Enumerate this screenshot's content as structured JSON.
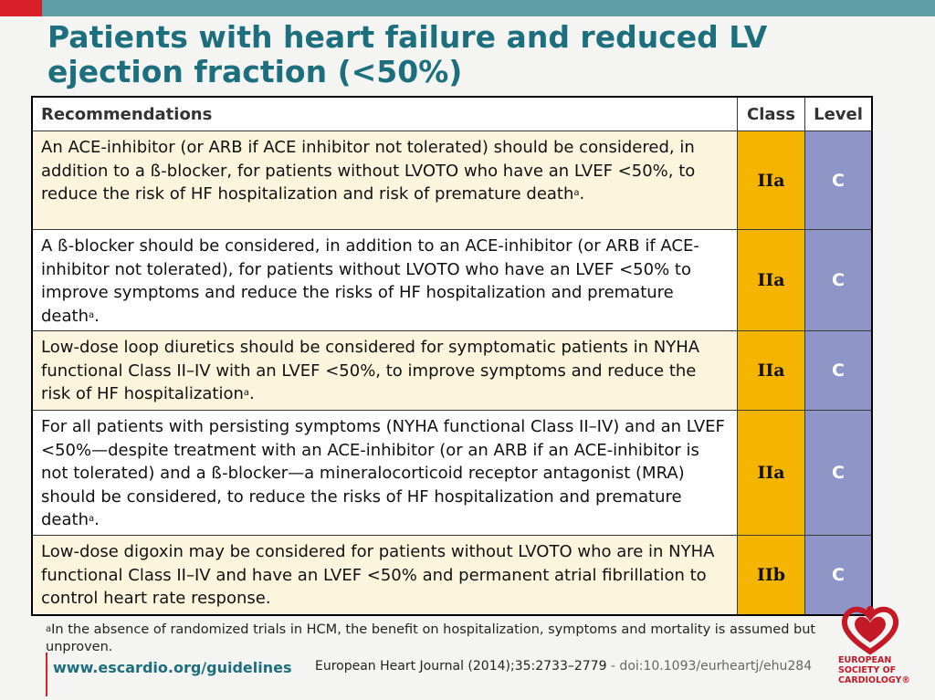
{
  "slide": {
    "title_line1": "Patients with heart failure and reduced LV",
    "title_line2": "ejection fraction (<50%)"
  },
  "table": {
    "headers": {
      "recommendations": "Recommendations",
      "class": "Class",
      "level": "Level"
    },
    "rows": [
      {
        "text": "An ACE-inhibitor (or ARB if ACE inhibitor not tolerated) should be considered, in addition to a ß-blocker, for patients without LVOTO who have an LVEF <50%, to reduce the risk of HF hospitalization and risk of premature death",
        "footnote_mark": "a",
        "tail": ".",
        "class": "IIa",
        "level": "C"
      },
      {
        "text": "A ß-blocker should be considered, in addition to an ACE-inhibitor (or ARB if ACE-inhibitor not tolerated), for patients without LVOTO who have an LVEF <50% to improve symptoms and reduce the risks of HF hospitalization and premature death",
        "footnote_mark": "a",
        "tail": ".",
        "class": "IIa",
        "level": "C"
      },
      {
        "text": "Low-dose loop diuretics should be considered for symptomatic patients in NYHA functional Class II–IV with an LVEF <50%, to improve symptoms and reduce the risk of HF hospitalization",
        "footnote_mark": "a",
        "tail": ".",
        "class": "IIa",
        "level": "C"
      },
      {
        "text": "For all patients with persisting symptoms (NYHA functional Class II–IV) and an LVEF <50%—despite treatment with an ACE-inhibitor (or an ARB if an ACE-inhibitor is not tolerated) and a ß-blocker—a mineralocorticoid receptor antagonist (MRA) should be considered, to reduce the risks of HF hospitalization and premature death",
        "footnote_mark": "a",
        "tail": ".",
        "class": "IIa",
        "level": "C"
      },
      {
        "text": "Low-dose digoxin may be considered for patients without LVOTO who are in NYHA functional Class II–IV and have an LVEF <50% and permanent atrial fibrillation to control heart rate response.",
        "footnote_mark": "",
        "tail": "",
        "class": "IIb",
        "level": "C"
      }
    ]
  },
  "footnote": {
    "mark": "a",
    "text": "In the absence of randomized trials in HCM, the benefit on hospitalization, symptoms and mortality is assumed but unproven."
  },
  "footer": {
    "website": "www.escardio.org/guidelines",
    "journal": "European Heart Journal (2014);35:2733–2779",
    "doi": " - doi:10.1093/eurheartj/ehu284"
  },
  "logo": {
    "line1": "EUROPEAN",
    "line2": "SOCIETY OF",
    "line3": "CARDIOLOGY®"
  },
  "colors": {
    "title": "#1d6f7d",
    "class_cell": "#f4b400",
    "level_cell": "#8e96c7",
    "shaded_row": "#fcf5dd",
    "brand_red": "#d81f2a"
  }
}
